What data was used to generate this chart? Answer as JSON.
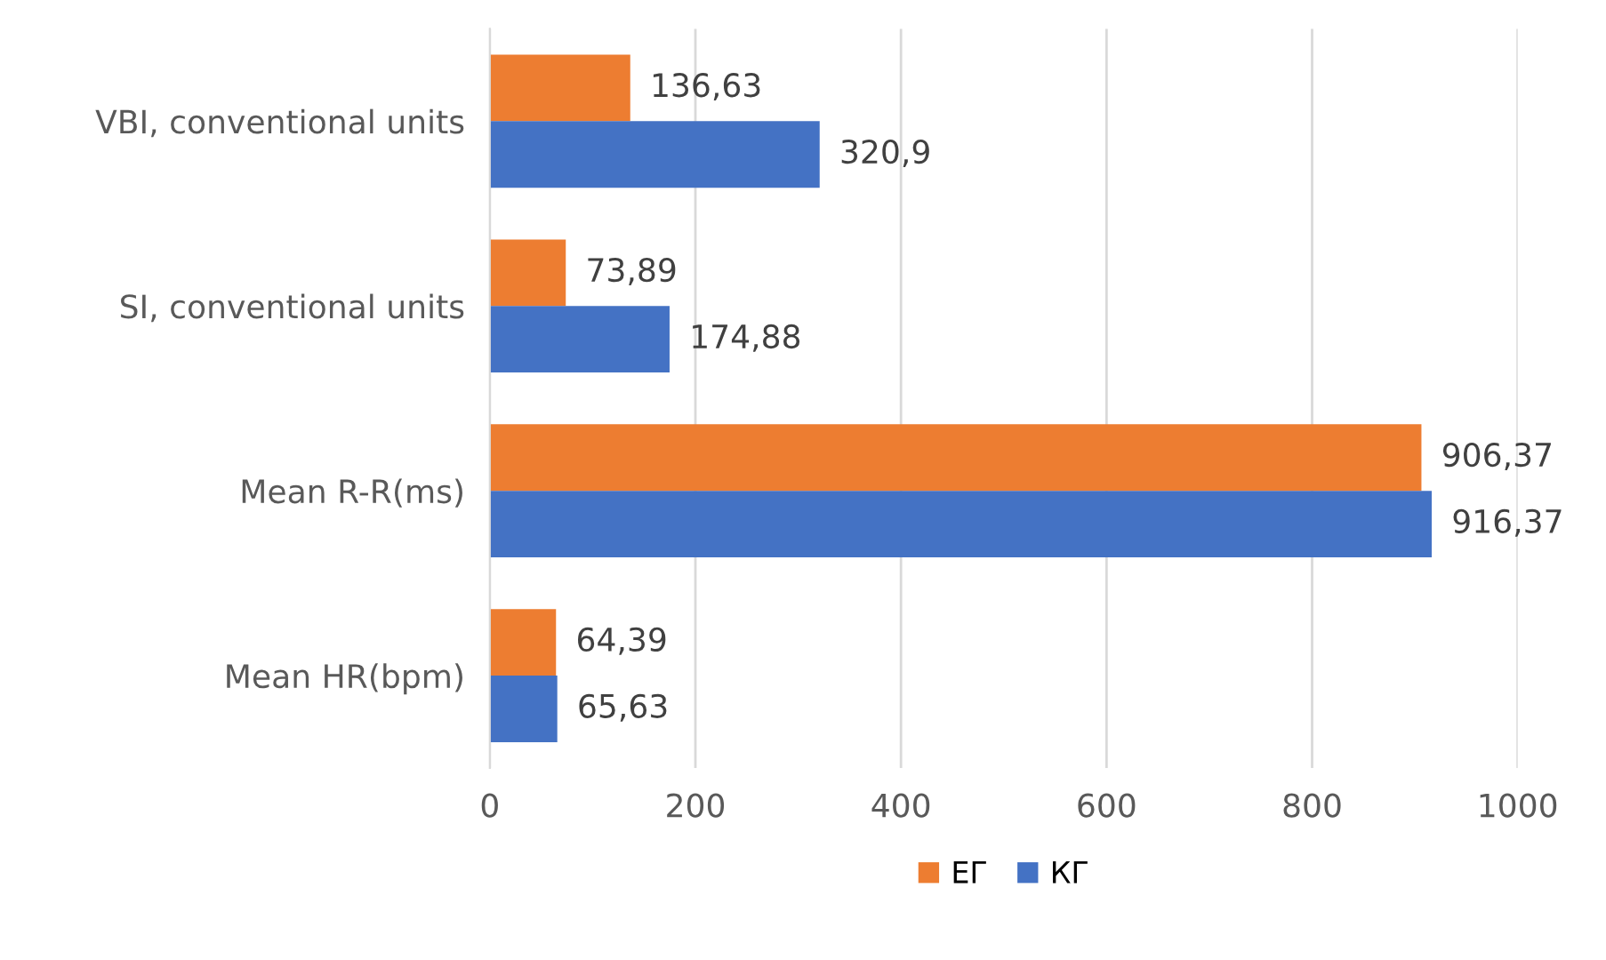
{
  "chart_data": {
    "type": "bar",
    "orientation": "horizontal",
    "categories": [
      "VBI, conventional units",
      "SI, conventional units",
      "Mean R-R(ms)",
      "Mean HR(bpm)"
    ],
    "series": [
      {
        "name": "ЕГ",
        "color": "#ed7d31",
        "values": [
          136.63,
          73.89,
          906.37,
          64.39
        ],
        "value_labels": [
          "136,63",
          "73,89",
          "906,37",
          "64,39"
        ]
      },
      {
        "name": "КГ",
        "color": "#4472c4",
        "values": [
          320.9,
          174.88,
          916.37,
          65.63
        ],
        "value_labels": [
          "320,9",
          "174,88",
          "916,37",
          "65,63"
        ]
      }
    ],
    "xlim": [
      0,
      1000
    ],
    "xticks": [
      0,
      200,
      400,
      600,
      800,
      1000
    ],
    "grid": "x",
    "legend": "bottom"
  }
}
